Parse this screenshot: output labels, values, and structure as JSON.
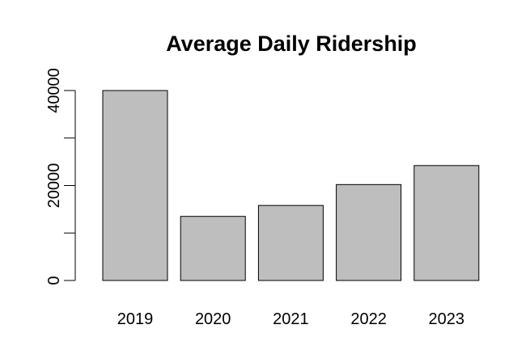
{
  "chart_data": {
    "type": "bar",
    "title": "Average Daily Ridership",
    "xlabel": "",
    "ylabel": "",
    "categories": [
      "2019",
      "2020",
      "2021",
      "2022",
      "2023"
    ],
    "values": [
      40000,
      13500,
      15800,
      20200,
      24200
    ],
    "ylim": [
      0,
      40000
    ],
    "y_ticks": [
      0,
      10000,
      20000,
      30000,
      40000
    ],
    "y_tick_labels": [
      "0",
      "",
      "20000",
      "",
      "40000"
    ],
    "bar_color": "#bebebe",
    "grid": false,
    "legend": "none"
  }
}
